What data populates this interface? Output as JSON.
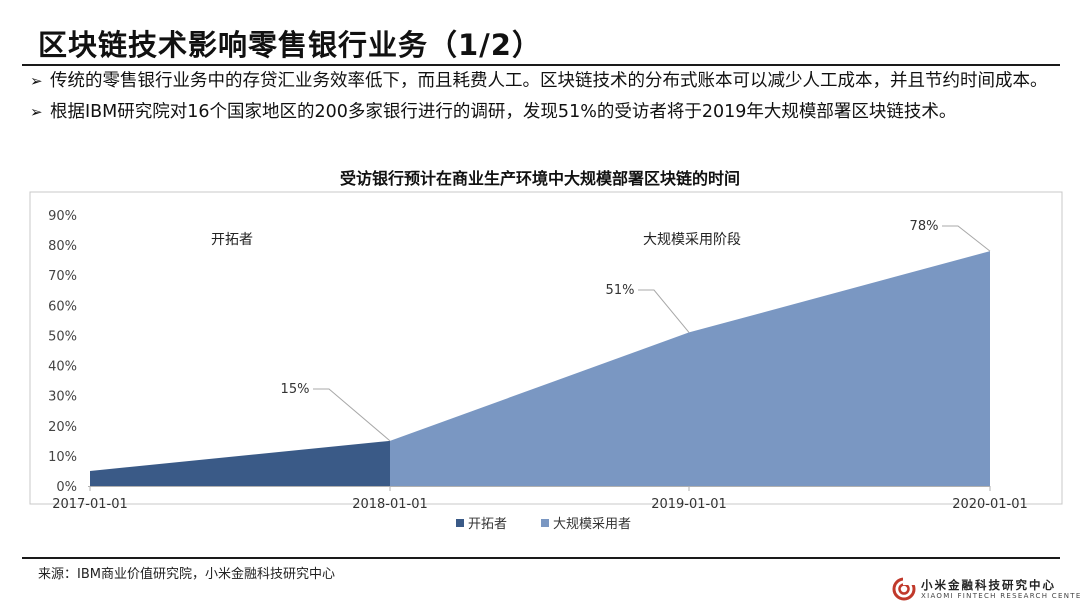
{
  "page": {
    "title": "区块链技术影响零售银行业务（1/2）",
    "bullets": [
      "传统的零售银行业务中的存贷汇业务效率低下，而且耗费人工。区块链技术的分布式账本可以减少人工成本，并且节约时间成本。",
      "根据IBM研究院对16个国家地区的200多家银行进行的调研，发现51%的受访者将于2019年大规模部署区块链技术。"
    ],
    "bullet_marker": "➢",
    "source": "来源：IBM商业价值研究院，小米金融科技研究中心",
    "logo": {
      "cn": "小米金融科技研究中心",
      "en": "XIAOMI FINTECH RESEARCH CENTER"
    }
  },
  "chart_data": {
    "type": "area",
    "title": "受访银行预计在商业生产环境中大规模部署区块链的时间",
    "xlabel": "",
    "ylabel": "",
    "x": [
      "2017-01-01",
      "2018-01-01",
      "2019-01-01",
      "2020-01-01"
    ],
    "ylim": [
      0,
      90
    ],
    "yticks": [
      "0%",
      "10%",
      "20%",
      "30%",
      "40%",
      "50%",
      "60%",
      "70%",
      "80%",
      "90%"
    ],
    "grid": false,
    "legend_position": "bottom",
    "series": [
      {
        "name": "开拓者",
        "color": "#3a5a87",
        "points": [
          [
            "2017-01-01",
            5
          ],
          [
            "2018-01-01",
            15
          ]
        ]
      },
      {
        "name": "大规模采用者",
        "color": "#7a97c2",
        "points": [
          [
            "2018-01-01",
            15
          ],
          [
            "2019-01-01",
            51
          ],
          [
            "2020-01-01",
            78
          ]
        ]
      }
    ],
    "data_labels": [
      {
        "x": "2018-01-01",
        "y": 15,
        "text": "15%"
      },
      {
        "x": "2019-01-01",
        "y": 51,
        "text": "51%"
      },
      {
        "x": "2020-01-01",
        "y": 78,
        "text": "78%"
      }
    ],
    "region_labels": [
      "开拓者",
      "大规模采用阶段"
    ],
    "box_color": "#c8c8c8",
    "leader_color": "#a8a8a8"
  }
}
